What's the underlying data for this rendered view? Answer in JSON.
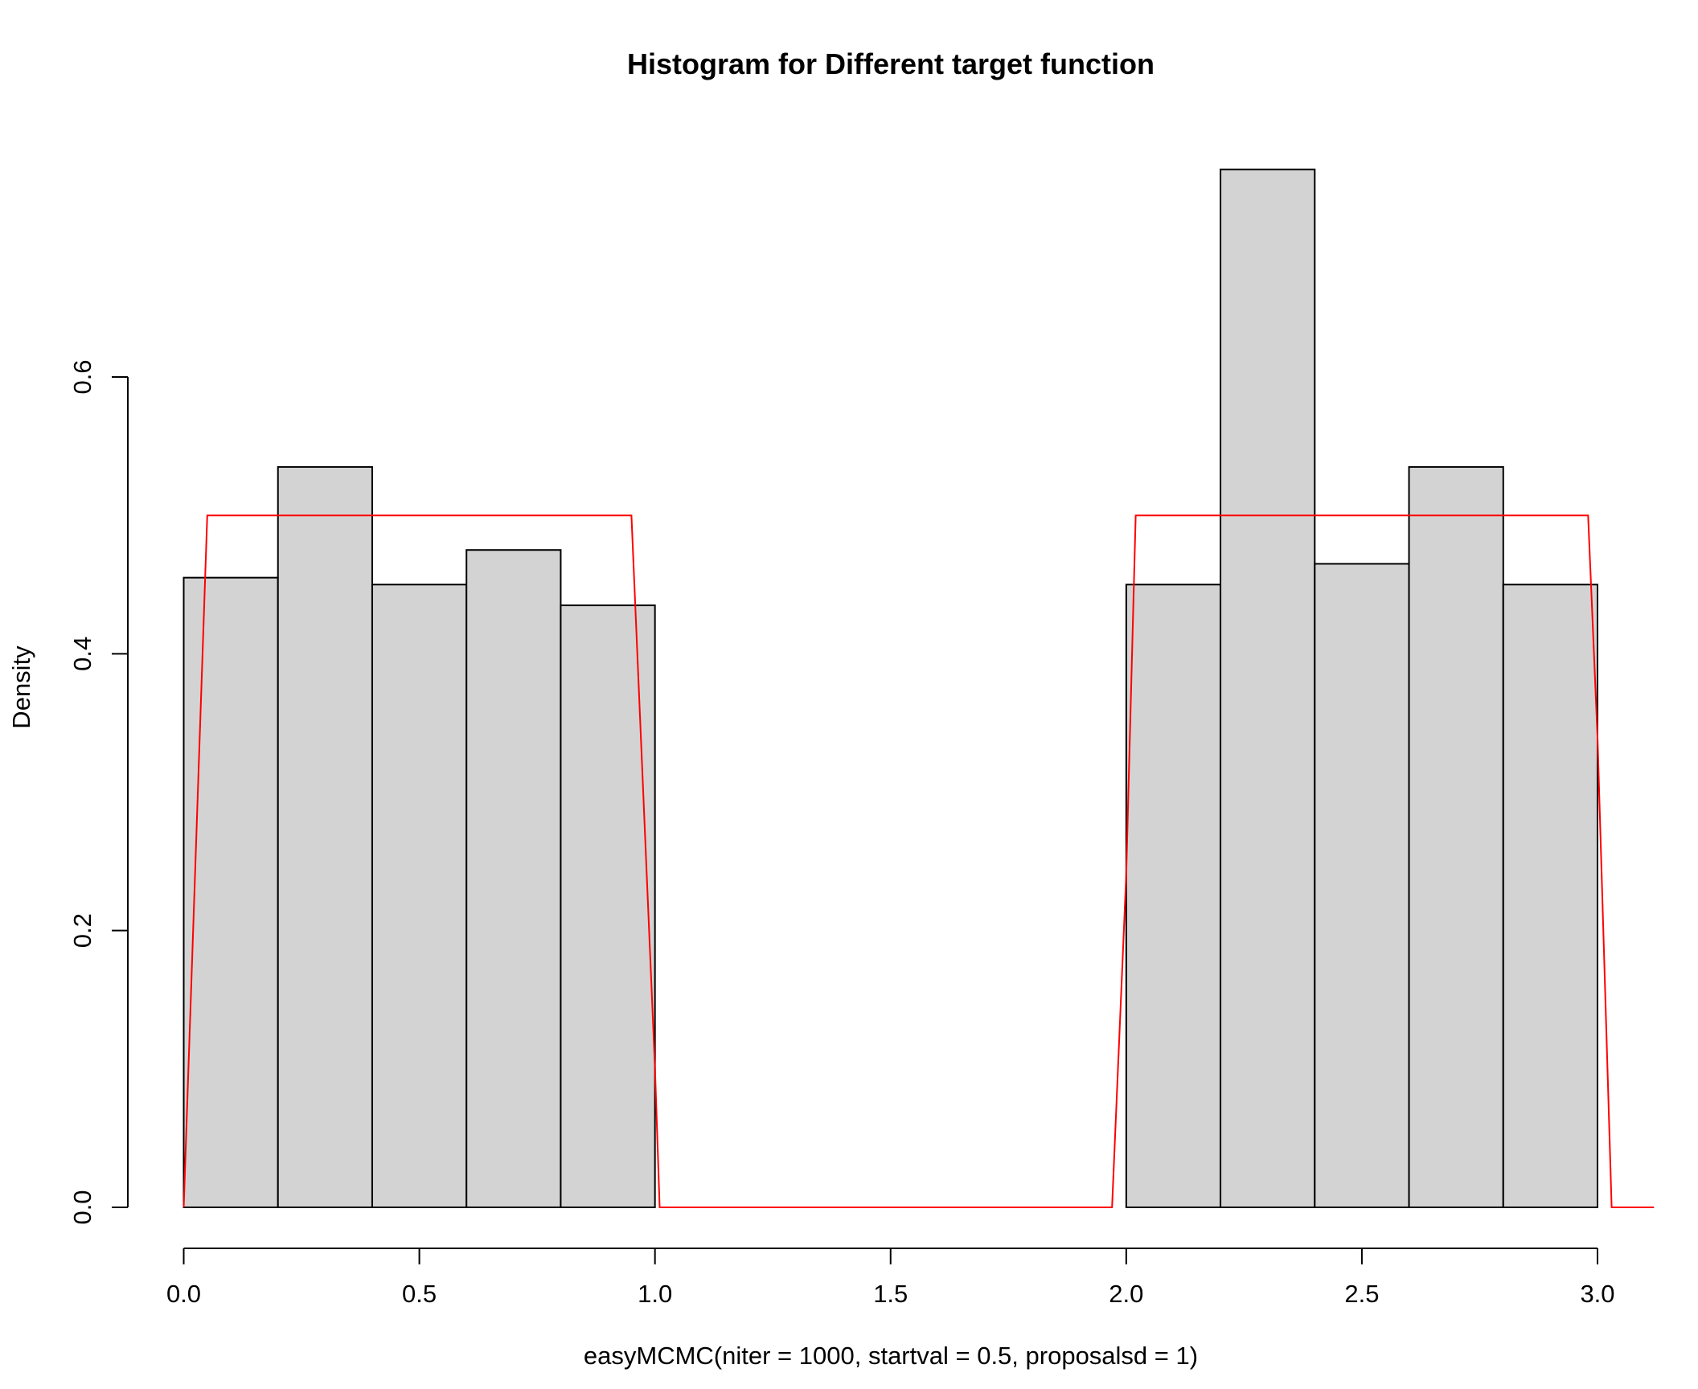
{
  "chart_data": {
    "type": "bar",
    "title": "Histogram for Different target function",
    "xlabel": "easyMCMC(niter = 1000, startval = 0.5, proposalsd = 1)",
    "ylabel": "Density",
    "xlim": [
      0.0,
      3.12
    ],
    "ylim": [
      0.0,
      0.75
    ],
    "x_ticks": [
      "0.0",
      "0.5",
      "1.0",
      "1.5",
      "2.0",
      "2.5",
      "3.0"
    ],
    "y_ticks": [
      "0.0",
      "0.2",
      "0.4",
      "0.6"
    ],
    "grid": false,
    "bar_color": "#d3d3d3",
    "bar_edge_color": "#000000",
    "bins": [
      {
        "x0": 0.0,
        "x1": 0.2,
        "density": 0.455
      },
      {
        "x0": 0.2,
        "x1": 0.4,
        "density": 0.535
      },
      {
        "x0": 0.4,
        "x1": 0.6,
        "density": 0.45
      },
      {
        "x0": 0.6,
        "x1": 0.8,
        "density": 0.475
      },
      {
        "x0": 0.8,
        "x1": 1.0,
        "density": 0.435
      },
      {
        "x0": 2.0,
        "x1": 2.2,
        "density": 0.45
      },
      {
        "x0": 2.2,
        "x1": 2.4,
        "density": 0.75
      },
      {
        "x0": 2.4,
        "x1": 2.6,
        "density": 0.465
      },
      {
        "x0": 2.6,
        "x1": 2.8,
        "density": 0.535
      },
      {
        "x0": 2.8,
        "x1": 3.0,
        "density": 0.45
      }
    ],
    "density_line": {
      "color": "#ff0000",
      "x": [
        0.0,
        0.05,
        0.95,
        1.0,
        1.01,
        1.97,
        2.0,
        2.02,
        2.98,
        3.0,
        3.03,
        3.12
      ],
      "y": [
        0.0,
        0.5,
        0.5,
        0.1,
        0.0,
        0.0,
        0.24,
        0.5,
        0.5,
        0.34,
        0.0,
        0.0
      ]
    }
  }
}
